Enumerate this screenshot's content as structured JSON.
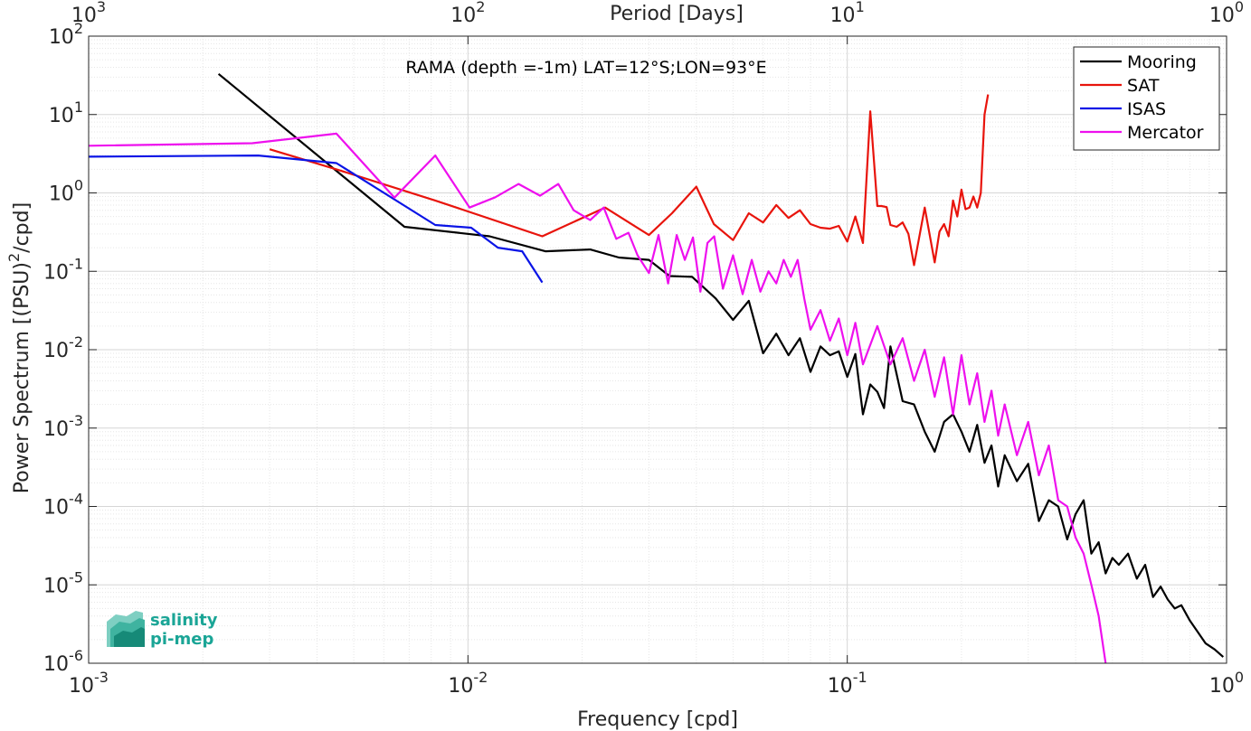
{
  "chart_data": {
    "type": "line",
    "title": "RAMA (depth =-1m) LAT=12°S;LON=93°E",
    "xlabel": "Frequency [cpd]",
    "ylabel": "Power Spectrum [(PSU)^2/cpd]",
    "top_xlabel": "Period [Days]",
    "x_scale": "log",
    "y_scale": "log",
    "xlim": [
      0.001,
      1
    ],
    "ylim": [
      1e-06,
      100
    ],
    "grid": true,
    "legend_position": "top-right",
    "x_ticks": [
      {
        "value": 0.001,
        "base": "10",
        "exp": "-3"
      },
      {
        "value": 0.01,
        "base": "10",
        "exp": "-2"
      },
      {
        "value": 0.1,
        "base": "10",
        "exp": "-1"
      },
      {
        "value": 1,
        "base": "10",
        "exp": "0"
      }
    ],
    "top_ticks": [
      {
        "value": 0.001,
        "base": "10",
        "exp": "3"
      },
      {
        "value": 0.01,
        "base": "10",
        "exp": "2"
      },
      {
        "value": 0.1,
        "base": "10",
        "exp": "1"
      },
      {
        "value": 1,
        "base": "10",
        "exp": "0"
      }
    ],
    "y_ticks": [
      {
        "value": 100,
        "base": "10",
        "exp": "2"
      },
      {
        "value": 10,
        "base": "10",
        "exp": "1"
      },
      {
        "value": 1,
        "base": "10",
        "exp": "0"
      },
      {
        "value": 0.1,
        "base": "10",
        "exp": "-1"
      },
      {
        "value": 0.01,
        "base": "10",
        "exp": "-2"
      },
      {
        "value": 0.001,
        "base": "10",
        "exp": "-3"
      },
      {
        "value": 0.0001,
        "base": "10",
        "exp": "-4"
      },
      {
        "value": 1e-05,
        "base": "10",
        "exp": "-5"
      },
      {
        "value": 1e-06,
        "base": "10",
        "exp": "-6"
      }
    ],
    "series": [
      {
        "name": "Mooring",
        "color": "#000000",
        "x": [
          0.0022,
          0.0068,
          0.0114,
          0.016,
          0.021,
          0.025,
          0.03,
          0.034,
          0.039,
          0.045,
          0.05,
          0.055,
          0.06,
          0.065,
          0.07,
          0.075,
          0.08,
          0.085,
          0.09,
          0.095,
          0.1,
          0.105,
          0.11,
          0.115,
          0.12,
          0.125,
          0.13,
          0.14,
          0.15,
          0.16,
          0.17,
          0.18,
          0.19,
          0.2,
          0.21,
          0.22,
          0.23,
          0.24,
          0.25,
          0.26,
          0.28,
          0.3,
          0.32,
          0.34,
          0.36,
          0.38,
          0.4,
          0.42,
          0.44,
          0.46,
          0.48,
          0.5,
          0.52,
          0.55,
          0.58,
          0.61,
          0.64,
          0.67,
          0.7,
          0.73,
          0.76,
          0.8,
          0.84,
          0.88,
          0.93,
          0.98
        ],
        "y": [
          33,
          0.37,
          0.28,
          0.18,
          0.19,
          0.15,
          0.14,
          0.087,
          0.085,
          0.045,
          0.024,
          0.042,
          0.009,
          0.016,
          0.0085,
          0.014,
          0.0052,
          0.011,
          0.0085,
          0.0095,
          0.0045,
          0.0088,
          0.0015,
          0.0036,
          0.0029,
          0.0018,
          0.011,
          0.0022,
          0.002,
          0.0009,
          0.0005,
          0.0012,
          0.0015,
          0.0009,
          0.0005,
          0.0011,
          0.00036,
          0.0006,
          0.00018,
          0.00045,
          0.00021,
          0.00035,
          6.5e-05,
          0.00012,
          0.0001,
          3.8e-05,
          8e-05,
          0.00012,
          2.5e-05,
          3.5e-05,
          1.4e-05,
          2.2e-05,
          1.8e-05,
          2.5e-05,
          1.2e-05,
          1.8e-05,
          7e-06,
          9.5e-06,
          6.5e-06,
          5e-06,
          5.5e-06,
          3.5e-06,
          2.5e-06,
          1.8e-06,
          1.5e-06,
          1.2e-06
        ]
      },
      {
        "name": "SAT",
        "color": "#e8140c",
        "x": [
          0.003,
          0.0045,
          0.0082,
          0.0157,
          0.023,
          0.03,
          0.0345,
          0.04,
          0.0445,
          0.05,
          0.055,
          0.06,
          0.065,
          0.07,
          0.075,
          0.08,
          0.085,
          0.09,
          0.095,
          0.1,
          0.105,
          0.11,
          0.115,
          0.12,
          0.123,
          0.127,
          0.13,
          0.135,
          0.14,
          0.145,
          0.15,
          0.16,
          0.17,
          0.175,
          0.18,
          0.185,
          0.19,
          0.195,
          0.2,
          0.205,
          0.21,
          0.215,
          0.22,
          0.225,
          0.23,
          0.235,
          0.24,
          0.245
        ],
        "y": [
          3.6,
          2.0,
          0.8,
          0.28,
          0.65,
          0.29,
          0.55,
          1.2,
          0.4,
          0.25,
          0.55,
          0.42,
          0.7,
          0.48,
          0.6,
          0.4,
          0.36,
          0.35,
          0.38,
          0.24,
          0.5,
          0.23,
          11,
          0.68,
          0.68,
          0.66,
          0.39,
          0.37,
          0.42,
          0.3,
          0.12,
          0.65,
          0.13,
          0.32,
          0.4,
          0.28,
          0.8,
          0.5,
          1.1,
          0.62,
          0.65,
          0.9,
          0.65,
          1.0,
          10,
          18,
          0,
          0
        ]
      },
      {
        "name": "ISAS",
        "color": "#0a14e6",
        "x": [
          0.001,
          0.0028,
          0.0045,
          0.0082,
          0.0102,
          0.012,
          0.0139,
          0.0157
        ],
        "y": [
          2.9,
          3.0,
          2.4,
          0.39,
          0.36,
          0.2,
          0.18,
          0.072
        ]
      },
      {
        "name": "Mercator",
        "color": "#ee10ee",
        "x": [
          0.001,
          0.0027,
          0.0045,
          0.0064,
          0.0082,
          0.0101,
          0.0118,
          0.0136,
          0.0155,
          0.0173,
          0.019,
          0.021,
          0.0228,
          0.0246,
          0.0265,
          0.028,
          0.03,
          0.0318,
          0.0337,
          0.0355,
          0.0373,
          0.0392,
          0.041,
          0.0428,
          0.0446,
          0.047,
          0.05,
          0.053,
          0.056,
          0.059,
          0.062,
          0.065,
          0.068,
          0.071,
          0.074,
          0.077,
          0.08,
          0.085,
          0.09,
          0.095,
          0.1,
          0.105,
          0.11,
          0.12,
          0.13,
          0.14,
          0.15,
          0.16,
          0.17,
          0.18,
          0.19,
          0.2,
          0.21,
          0.22,
          0.23,
          0.24,
          0.25,
          0.26,
          0.28,
          0.3,
          0.32,
          0.34,
          0.36,
          0.38,
          0.4,
          0.42,
          0.44,
          0.46,
          0.48
        ],
        "y": [
          4.0,
          4.3,
          5.7,
          0.87,
          3.0,
          0.65,
          0.88,
          1.3,
          0.92,
          1.3,
          0.6,
          0.45,
          0.65,
          0.26,
          0.31,
          0.16,
          0.095,
          0.29,
          0.07,
          0.29,
          0.14,
          0.27,
          0.055,
          0.23,
          0.28,
          0.06,
          0.16,
          0.051,
          0.14,
          0.055,
          0.1,
          0.07,
          0.14,
          0.085,
          0.14,
          0.045,
          0.018,
          0.032,
          0.013,
          0.025,
          0.0085,
          0.022,
          0.0065,
          0.02,
          0.0065,
          0.014,
          0.004,
          0.01,
          0.0025,
          0.008,
          0.0015,
          0.0085,
          0.002,
          0.005,
          0.0012,
          0.003,
          0.0008,
          0.002,
          0.00045,
          0.0012,
          0.00025,
          0.0006,
          0.00012,
          0.0001,
          4e-05,
          2.5e-05,
          1e-05,
          4e-06,
          1e-06
        ]
      }
    ]
  },
  "watermark": {
    "line1": "salinity",
    "line2": "pi-mep",
    "color": "#1aa596"
  }
}
